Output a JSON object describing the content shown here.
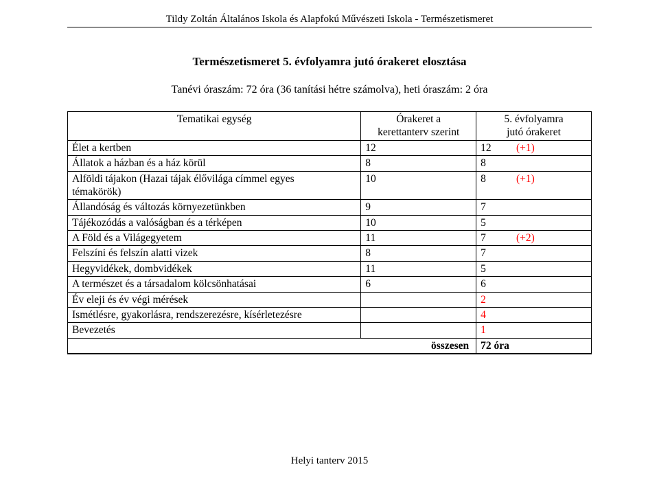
{
  "header": {
    "text": "Tildy Zoltán Általános Iskola és Alapfokú Művészeti Iskola - Természetismeret"
  },
  "title": "Természetismeret 5. évfolyamra jutó órakeret elosztása",
  "subtitle": "Tanévi óraszám: 72 óra (36 tanítási hétre számolva), heti óraszám: 2 óra",
  "table": {
    "head": {
      "c0": "Tematikai egység",
      "c1_line1": "Órakeret a",
      "c1_line2": "kerettanterv szerint",
      "c2_line1": "5. évfolyamra",
      "c2_line2": "jutó órakeret"
    },
    "rows": [
      {
        "label": "Élet a kertben",
        "a": "12",
        "b": "12",
        "extra": "(+1)"
      },
      {
        "label": "Állatok a házban és a ház körül",
        "a": "8",
        "b": "8",
        "extra": ""
      },
      {
        "label_l1": "Alföldi tájakon (Hazai tájak élővilága címmel egyes",
        "label_l2": "témakörök)",
        "a": "10",
        "b": "8",
        "extra": "(+1)"
      },
      {
        "label": "Állandóság és változás környezetünkben",
        "a": "9",
        "b": "7",
        "extra": ""
      },
      {
        "label": "Tájékozódás a valóságban és a térképen",
        "a": "10",
        "b": "5",
        "extra": ""
      },
      {
        "label": "A Föld és a Világegyetem",
        "a": "11",
        "b": "7",
        "extra": "(+2)"
      },
      {
        "label": "Felszíni és felszín alatti vizek",
        "a": "8",
        "b": "7",
        "extra": ""
      },
      {
        "label": "Hegyvidékek, dombvidékek",
        "a": "11",
        "b": "5",
        "extra": ""
      },
      {
        "label": "A természet és a társadalom kölcsönhatásai",
        "a": "6",
        "b": "6",
        "extra": ""
      },
      {
        "label": "Év eleji és év végi mérések",
        "a": "",
        "b": "2",
        "red": true
      },
      {
        "label": "Ismétlésre, gyakorlásra, rendszerezésre, kísérletezésre",
        "a": "",
        "b": "4",
        "red": true
      },
      {
        "label": "Bevezetés",
        "a": "",
        "b": "1",
        "red": true
      }
    ],
    "sum": {
      "label": "összesen",
      "value": "72 óra"
    }
  },
  "footer": "Helyi tanterv 2015"
}
